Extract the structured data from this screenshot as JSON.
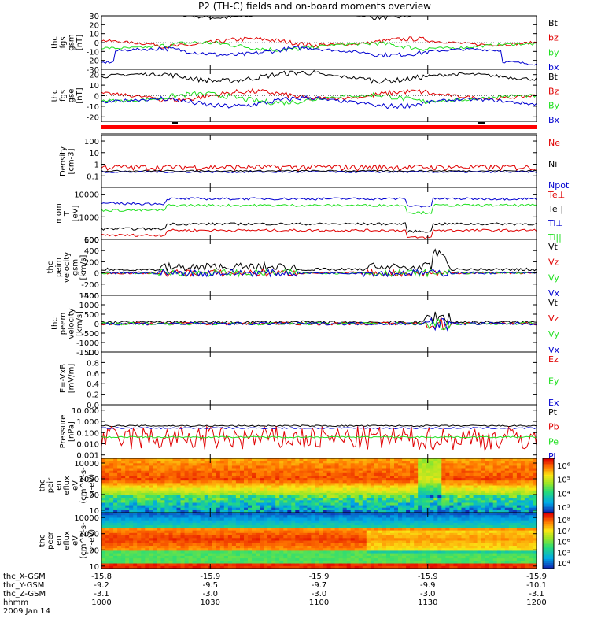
{
  "title": "P2 (TH-C) fields and on-board moments overview",
  "colors": {
    "black": "#000000",
    "red": "#e00000",
    "green": "#20e020",
    "blue": "#0000d0"
  },
  "footer": {
    "rows": [
      {
        "label": "thc_X-GSM",
        "values": [
          "-15.8",
          "-15.9",
          "-15.9",
          "-15.9",
          "-15.9"
        ]
      },
      {
        "label": "thc_Y-GSM",
        "values": [
          "-9.2",
          "-9.5",
          "-9.7",
          "-9.9",
          "-10.1"
        ]
      },
      {
        "label": "thc_Z-GSM",
        "values": [
          "-3.1",
          "-3.0",
          "-3.0",
          "-3.0",
          "-3.1"
        ]
      },
      {
        "label": "hhmm",
        "values": [
          "1000",
          "1030",
          "1100",
          "1130",
          "1200"
        ]
      }
    ],
    "date": "2009 Jan 14"
  },
  "chart_data": [
    {
      "type": "line",
      "ylabel": [
        "thc",
        "fgs",
        "gsm",
        "[nT]"
      ],
      "ylim": [
        -30,
        30
      ],
      "ticks": [
        "30",
        "20",
        "10",
        "0",
        "-10",
        "-20",
        "-30"
      ],
      "series": [
        {
          "name": "Bt",
          "color": "black"
        },
        {
          "name": "bz",
          "color": "red"
        },
        {
          "name": "by",
          "color": "green"
        },
        {
          "name": "bx",
          "color": "blue"
        }
      ]
    },
    {
      "type": "line",
      "ylabel": [
        "thc",
        "fgs",
        "gse",
        "[nT]"
      ],
      "ylim": [
        -25,
        25
      ],
      "ticks": [
        "20",
        "10",
        "0",
        "-10",
        "-20"
      ],
      "series": [
        {
          "name": "Bt",
          "color": "black"
        },
        {
          "name": "Bz",
          "color": "red"
        },
        {
          "name": "By",
          "color": "green"
        },
        {
          "name": "Bx",
          "color": "blue"
        }
      ]
    },
    {
      "type": "line",
      "ylabel": [
        "Density",
        "[cm-3]"
      ],
      "scale": "log",
      "ylim": [
        0.01,
        300
      ],
      "ticks": [
        "100",
        "10",
        "1",
        "0.1"
      ],
      "series": [
        {
          "name": "Ne",
          "color": "red"
        },
        {
          "name": "Ni",
          "color": "black"
        },
        {
          "name": "Npot",
          "color": "blue"
        }
      ]
    },
    {
      "type": "line",
      "ylabel": [
        "mom",
        "T",
        "[eV]"
      ],
      "scale": "log",
      "ylim": [
        100,
        20000
      ],
      "ticks": [
        "10000",
        "1000",
        "100"
      ],
      "series": [
        {
          "name": "Te⊥",
          "color": "red"
        },
        {
          "name": "Te||",
          "color": "black"
        },
        {
          "name": "Ti⊥",
          "color": "blue"
        },
        {
          "name": "Ti||",
          "color": "green"
        }
      ]
    },
    {
      "type": "line",
      "ylabel": [
        "thc",
        "peim",
        "velocity",
        "gsm",
        "[km/s]"
      ],
      "ylim": [
        -400,
        600
      ],
      "ticks": [
        "600",
        "400",
        "200",
        "0",
        "-200",
        "-400"
      ],
      "series": [
        {
          "name": "Vt",
          "color": "black"
        },
        {
          "name": "Vz",
          "color": "red"
        },
        {
          "name": "Vy",
          "color": "green"
        },
        {
          "name": "Vx",
          "color": "blue"
        }
      ]
    },
    {
      "type": "line",
      "ylabel": [
        "thc",
        "peem",
        "velocity",
        "[km/s]"
      ],
      "ylim": [
        -1500,
        1500
      ],
      "ticks": [
        "1500",
        "1000",
        "500",
        "0",
        "-500",
        "-1000",
        "-1500"
      ],
      "series": [
        {
          "name": "Vt",
          "color": "black"
        },
        {
          "name": "Vz",
          "color": "red"
        },
        {
          "name": "Vy",
          "color": "green"
        },
        {
          "name": "Vx",
          "color": "blue"
        }
      ]
    },
    {
      "type": "line",
      "ylabel": [
        "E=-VxB",
        "[mV/m]"
      ],
      "ylim": [
        0,
        1
      ],
      "ticks": [
        "1.0",
        "0.8",
        "0.6",
        "0.4",
        "0.2",
        "0.0"
      ],
      "series": [
        {
          "name": "Ez",
          "color": "red"
        },
        {
          "name": "Ey",
          "color": "green"
        },
        {
          "name": "Ex",
          "color": "blue"
        }
      ]
    },
    {
      "type": "line",
      "ylabel": [
        "Pressure",
        "[nPa]"
      ],
      "scale": "log",
      "ylim": [
        0.0005,
        30
      ],
      "ticks": [
        "10.000",
        "1.000",
        "0.100",
        "0.010",
        "0.001"
      ],
      "series": [
        {
          "name": "Pt",
          "color": "black"
        },
        {
          "name": "Pb",
          "color": "red"
        },
        {
          "name": "Pe",
          "color": "green"
        },
        {
          "name": "Pi",
          "color": "blue"
        }
      ]
    },
    {
      "type": "heatmap",
      "ylabel": [
        "thc",
        "peir",
        "en",
        "eflux",
        "eV",
        "(cm^2-s-",
        "sr-eV)"
      ],
      "scale": "log",
      "ylim": [
        7,
        20000
      ],
      "ticks": [
        "10000",
        "1000",
        "100",
        "10"
      ],
      "colorbar": [
        "10⁶",
        "10⁵",
        "10⁴",
        "10³"
      ]
    },
    {
      "type": "heatmap",
      "ylabel": [
        "thc",
        "peer",
        "en",
        "eflux",
        "eV",
        "(cm^2-s-",
        "sr-eV)"
      ],
      "scale": "log",
      "ylim": [
        7,
        20000
      ],
      "ticks": [
        "10000",
        "1000",
        "100",
        "10"
      ],
      "colorbar": [
        "10⁸",
        "10⁷",
        "10⁶",
        "10⁵",
        "10⁴"
      ]
    }
  ]
}
